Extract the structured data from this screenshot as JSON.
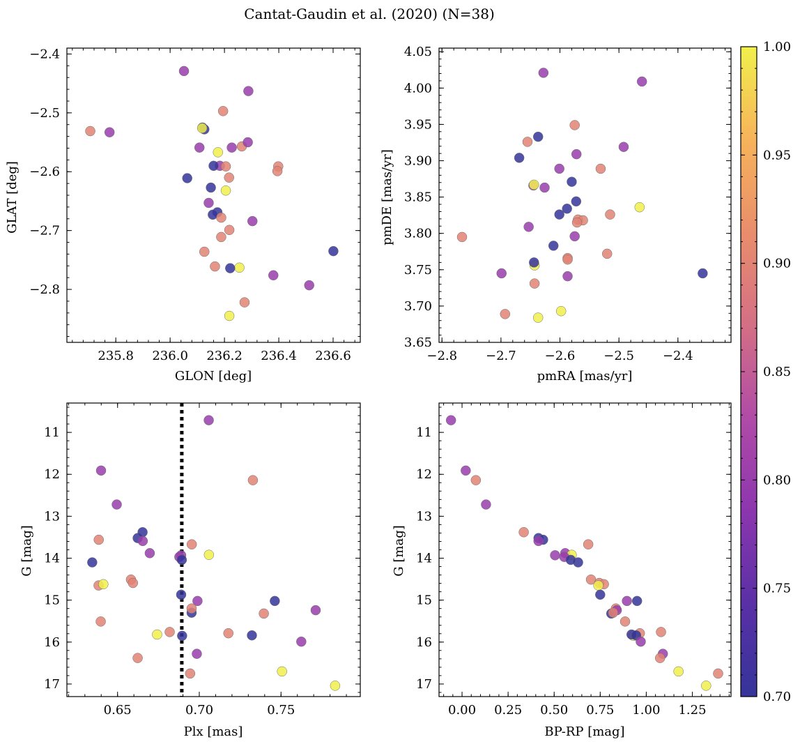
{
  "title": "Cantat-Gaudin et al. (2020) (N=38)",
  "chart_data": [
    {
      "type": "scatter",
      "name": "glon-glat",
      "xlabel": "GLON [deg]",
      "ylabel": "GLAT [deg]",
      "xlim": [
        235.62,
        236.7
      ],
      "ylim": [
        -2.89,
        -2.39
      ],
      "y_inverted": false,
      "xticks": [
        235.8,
        236.0,
        236.2,
        236.4,
        236.6
      ],
      "xtick_labels": [
        "235.8",
        "236.0",
        "236.2",
        "236.4",
        "236.6"
      ],
      "xminor": 0.04,
      "yticks": [
        -2.4,
        -2.5,
        -2.6,
        -2.7,
        -2.8
      ],
      "ytick_labels": [
        "−2.4",
        "−2.5",
        "−2.6",
        "−2.7",
        "−2.8"
      ],
      "yminor": 0.02,
      "x": [
        236.051,
        236.288,
        235.706,
        235.777,
        236.195,
        236.119,
        236.126,
        236.108,
        236.264,
        236.286,
        236.227,
        236.176,
        236.183,
        236.063,
        236.16,
        236.205,
        236.398,
        236.217,
        236.205,
        236.15,
        236.142,
        236.174,
        236.157,
        236.188,
        236.303,
        236.218,
        236.188,
        236.126,
        236.165,
        236.255,
        236.221,
        236.601,
        236.38,
        236.512,
        236.274,
        236.218,
        236.395,
        236.118
      ],
      "y": [
        -2.429,
        -2.463,
        -2.531,
        -2.533,
        -2.497,
        -2.525,
        -2.528,
        -2.559,
        -2.557,
        -2.55,
        -2.559,
        -2.567,
        -2.59,
        -2.611,
        -2.59,
        -2.591,
        -2.591,
        -2.61,
        -2.632,
        -2.627,
        -2.653,
        -2.669,
        -2.673,
        -2.678,
        -2.684,
        -2.699,
        -2.711,
        -2.736,
        -2.761,
        -2.763,
        -2.764,
        -2.735,
        -2.776,
        -2.793,
        -2.822,
        -2.845,
        -2.599,
        -2.526
      ]
    },
    {
      "type": "scatter",
      "name": "pmra-pmde",
      "xlabel": "pmRA [mas/yr]",
      "ylabel": "pmDE [mas/yr]",
      "xlim": [
        -2.805,
        -2.31
      ],
      "ylim": [
        3.65,
        4.055
      ],
      "y_inverted": false,
      "xticks": [
        -2.8,
        -2.7,
        -2.6,
        -2.5,
        -2.4
      ],
      "xtick_labels": [
        "−2.8",
        "−2.7",
        "−2.6",
        "−2.5",
        "−2.4"
      ],
      "xminor": 0.02,
      "yticks": [
        3.65,
        3.7,
        3.75,
        3.8,
        3.85,
        3.9,
        3.95,
        4.0,
        4.05
      ],
      "ytick_labels": [
        "3.65",
        "3.70",
        "3.75",
        "3.80",
        "3.85",
        "3.90",
        "3.95",
        "4.00",
        "4.05"
      ],
      "yminor": 0.01,
      "x": [
        -2.628,
        -2.461,
        -2.575,
        -2.492,
        -2.655,
        -2.637,
        -2.669,
        -2.572,
        -2.531,
        -2.601,
        -2.645,
        -2.644,
        -2.626,
        -2.58,
        -2.5725,
        -2.5695,
        -2.561,
        -2.571,
        -2.465,
        -2.588,
        -2.653,
        -2.601,
        -2.611,
        -2.515,
        -2.575,
        -2.766,
        -2.52,
        -2.587,
        -2.587,
        -2.643,
        -2.644,
        -2.358,
        -2.699,
        -2.587,
        -2.643,
        -2.598,
        -2.693,
        -2.637
      ],
      "y": [
        4.021,
        4.009,
        3.949,
        3.919,
        3.926,
        3.933,
        3.904,
        3.909,
        3.889,
        3.889,
        3.866,
        3.867,
        3.863,
        3.871,
        3.844,
        3.819,
        3.818,
        3.815,
        3.836,
        3.834,
        3.809,
        3.826,
        3.783,
        3.826,
        3.796,
        3.795,
        3.772,
        3.766,
        3.764,
        3.756,
        3.76,
        3.745,
        3.745,
        3.741,
        3.731,
        3.693,
        3.689,
        3.684
      ]
    },
    {
      "type": "scatter",
      "name": "plx-g",
      "xlabel": "Plx [mas]",
      "ylabel": "G [mag]",
      "xlim": [
        0.619,
        0.7985
      ],
      "ylim": [
        10.3,
        17.3
      ],
      "y_inverted": true,
      "xticks": [
        0.65,
        0.7,
        0.75
      ],
      "xtick_labels": [
        "0.65",
        "0.70",
        "0.75"
      ],
      "xminor": 0.01,
      "yticks": [
        11,
        12,
        13,
        14,
        15,
        16,
        17
      ],
      "ytick_labels": [
        "11",
        "12",
        "13",
        "14",
        "15",
        "16",
        "17"
      ],
      "yminor": 0.2,
      "vline": {
        "x": 0.6893,
        "style": "dotted"
      },
      "x": [
        0.7058,
        0.6399,
        0.7328,
        0.6495,
        0.6385,
        0.6623,
        0.6653,
        0.6654,
        0.6954,
        0.6697,
        0.6889,
        0.7059,
        0.6878,
        0.6345,
        0.6893,
        0.6582,
        0.6594,
        0.6384,
        0.6413,
        0.6889,
        0.6989,
        0.6953,
        0.7462,
        0.6953,
        0.7712,
        0.7395,
        0.6397,
        0.7178,
        0.6819,
        0.6742,
        0.7322,
        0.6895,
        0.7624,
        0.6985,
        0.6623,
        0.7506,
        0.6944,
        0.7831
      ],
      "y": [
        10.71,
        11.91,
        12.14,
        12.72,
        13.56,
        13.52,
        13.38,
        13.59,
        13.67,
        13.88,
        13.93,
        13.92,
        13.97,
        14.1,
        14.04,
        14.51,
        14.59,
        14.65,
        14.62,
        14.87,
        15.02,
        15.3,
        15.02,
        15.2,
        15.24,
        15.32,
        15.51,
        15.79,
        15.76,
        15.82,
        15.84,
        15.85,
        15.99,
        16.28,
        16.38,
        16.7,
        16.75,
        17.04
      ]
    },
    {
      "type": "scatter",
      "name": "bprp-g",
      "xlabel": "BP-RP [mag]",
      "ylabel": "G [mag]",
      "xlim": [
        -0.125,
        1.46
      ],
      "ylim": [
        10.3,
        17.3
      ],
      "y_inverted": true,
      "xticks": [
        0.0,
        0.25,
        0.5,
        0.75,
        1.0,
        1.25
      ],
      "xtick_labels": [
        "0.00",
        "0.25",
        "0.50",
        "0.75",
        "1.00",
        "1.25"
      ],
      "xminor": 0.05,
      "yticks": [
        11,
        12,
        13,
        14,
        15,
        16,
        17
      ],
      "ytick_labels": [
        "11",
        "12",
        "13",
        "14",
        "15",
        "16",
        "17"
      ],
      "yminor": 0.2,
      "x": [
        -0.06,
        0.02,
        0.075,
        0.13,
        0.335,
        0.415,
        0.44,
        0.415,
        0.685,
        0.505,
        0.56,
        0.595,
        0.555,
        0.63,
        0.59,
        0.7,
        0.745,
        0.77,
        0.74,
        0.75,
        0.895,
        0.81,
        0.95,
        0.835,
        0.84,
        0.82,
        0.885,
        0.965,
        1.08,
        0.93,
        0.92,
        0.945,
        0.97,
        1.09,
        1.075,
        1.175,
        1.39,
        1.325
      ],
      "y": [
        10.71,
        11.91,
        12.14,
        12.72,
        13.38,
        13.52,
        13.56,
        13.59,
        13.67,
        13.93,
        13.88,
        13.92,
        13.97,
        14.1,
        14.04,
        14.51,
        14.59,
        14.62,
        14.65,
        14.87,
        15.02,
        15.32,
        15.02,
        15.2,
        15.24,
        15.3,
        15.51,
        15.79,
        15.76,
        15.85,
        15.82,
        15.84,
        15.99,
        16.28,
        16.38,
        16.7,
        16.75,
        17.04
      ]
    }
  ],
  "colorbar": {
    "cmap": "plasma",
    "range": [
      0.7,
      1.0
    ],
    "ticks": [
      0.7,
      0.75,
      0.8,
      0.85,
      0.9,
      0.95,
      1.0
    ],
    "tick_labels": [
      "0.70",
      "0.75",
      "0.80",
      "0.85",
      "0.90",
      "0.95",
      "1.00"
    ],
    "minor": 0.01,
    "stops": [
      "#35349a",
      "#5930a6",
      "#8c36ae",
      "#b04ba7",
      "#d46f85",
      "#e98d6c",
      "#f7b35a",
      "#f1f04c"
    ]
  },
  "membership_probability": [
    0.8,
    0.8,
    0.9,
    0.8,
    0.9,
    0.7,
    0.7,
    0.8,
    0.9,
    0.8,
    0.8,
    1.0,
    0.8,
    0.7,
    0.7,
    0.9,
    0.9,
    0.9,
    1.0,
    0.7,
    0.8,
    0.7,
    0.7,
    0.9,
    0.8,
    0.9,
    0.9,
    0.9,
    0.9,
    1.0,
    0.7,
    0.7,
    0.8,
    0.8,
    0.9,
    1.0,
    0.9,
    1.0
  ]
}
